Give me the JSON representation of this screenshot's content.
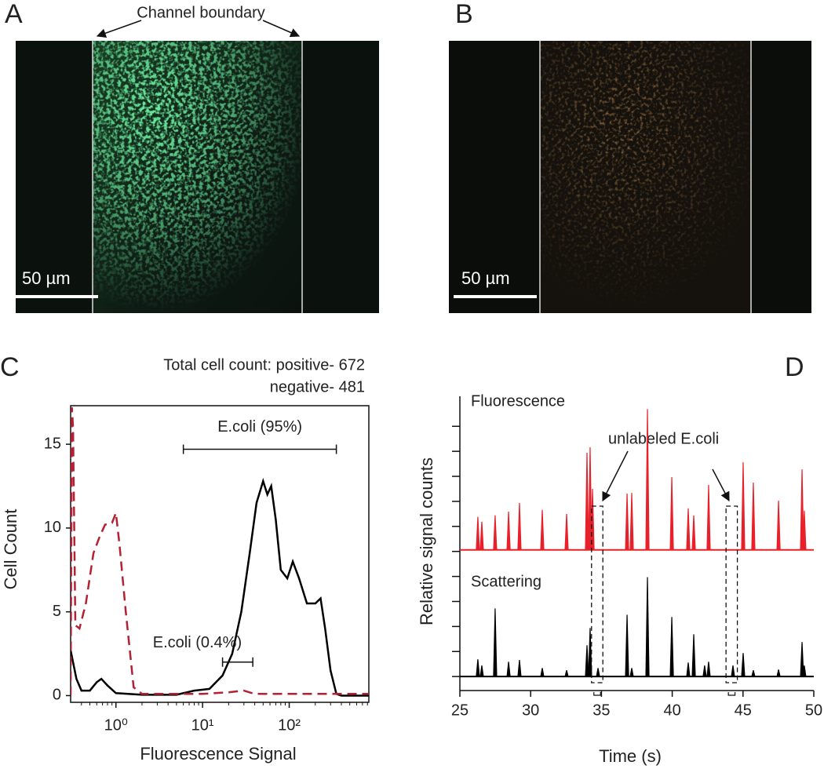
{
  "images": [
    {
      "label": "A",
      "annotation": "Channel boundary",
      "scale_bar": "50 µm"
    },
    {
      "label": "B",
      "scale_bar": "50 µm"
    }
  ],
  "chart_data": [
    {
      "type": "line",
      "label": "C",
      "x_scale": "log",
      "xlabel": "Fluorescence Signal",
      "ylabel": "Cell Count",
      "xlim": [
        0.3,
        830
      ],
      "ylim": [
        -0.4,
        17.3
      ],
      "xticks": [
        {
          "value": 1,
          "label": "10⁰"
        },
        {
          "value": 10,
          "label": "10¹"
        },
        {
          "value": 100,
          "label": "10²"
        }
      ],
      "yticks": [
        0,
        5,
        10,
        15
      ],
      "annotations": [
        "Total cell count: positive- 672",
        "negative- 481"
      ],
      "ranges": [
        {
          "label": "E.coli (95%)",
          "x": [
            6,
            350
          ],
          "y": 14.7
        },
        {
          "label": "E.coli (0.4%)",
          "x": [
            17,
            38
          ],
          "y": 2.0
        }
      ],
      "series": [
        {
          "color": "#000000",
          "dash": false,
          "x": [
            0.3,
            0.35,
            0.4,
            0.5,
            0.6,
            0.68,
            0.8,
            1.0,
            2,
            5,
            8,
            12,
            17,
            22,
            28,
            35,
            42,
            50,
            56,
            62,
            70,
            80,
            95,
            110,
            130,
            160,
            200,
            230,
            260,
            300,
            350,
            400,
            830
          ],
          "values": [
            2.7,
            1.0,
            0.3,
            0.3,
            0.8,
            1.0,
            0.6,
            0.15,
            0.05,
            0.05,
            0.3,
            0.4,
            1.2,
            2.5,
            5.0,
            8.5,
            11.5,
            12.8,
            12.0,
            12.5,
            10.5,
            7.5,
            7.0,
            8.0,
            7.0,
            5.5,
            5.5,
            5.8,
            4.0,
            1.5,
            0.1,
            0,
            0
          ]
        },
        {
          "color": "#b22234",
          "dash": true,
          "x": [
            0.3,
            0.31,
            0.32,
            0.34,
            0.38,
            0.45,
            0.55,
            0.65,
            0.75,
            0.9,
            1.0,
            1.1,
            1.3,
            1.6,
            2,
            10,
            20,
            30,
            40,
            830
          ],
          "values": [
            0,
            17.2,
            16,
            4.2,
            4.0,
            5.5,
            8.5,
            9.5,
            10.2,
            10.3,
            10.9,
            9.0,
            5.0,
            0.5,
            0.1,
            0.1,
            0.2,
            0.3,
            0.1,
            0.1
          ]
        }
      ]
    },
    {
      "type": "spike",
      "label": "D",
      "xlabel": "Time (s)",
      "ylabel": "Relative signal counts",
      "xlim": [
        25,
        50
      ],
      "ylim": [
        -0.56,
        11.2
      ],
      "xticks": [
        25,
        30,
        35,
        40,
        45,
        50
      ],
      "yticks": [
        0,
        1,
        2,
        3,
        4,
        5,
        6,
        7,
        8,
        9,
        10
      ],
      "ytick_labels": false,
      "annotations": [
        "unlabeled E.coli"
      ],
      "highlight_boxes": [
        {
          "x": [
            34.3,
            35.1
          ]
        },
        {
          "x": [
            43.8,
            44.6
          ]
        }
      ],
      "series": [
        {
          "name": "Fluorescence",
          "color": "#e8202a",
          "baseline": 5.06,
          "x": [
            26.27,
            26.55,
            27.49,
            28.44,
            29.21,
            30.82,
            32.54,
            33.98,
            34.2,
            34.37,
            36.81,
            37.14,
            38.25,
            39.97,
            41.13,
            41.52,
            42.57,
            45.01,
            45.73,
            47.51,
            49.17,
            49.33
          ],
          "values": [
            6.38,
            6.19,
            6.44,
            6.59,
            6.94,
            6.66,
            6.5,
            8.94,
            9.16,
            7.5,
            7.31,
            7.34,
            10.69,
            7.97,
            6.72,
            6.44,
            7.66,
            8.56,
            7.75,
            7.03,
            8.28,
            6.63
          ]
        },
        {
          "name": "Scattering",
          "color": "#000000",
          "baseline": 0,
          "x": [
            26.27,
            26.55,
            27.49,
            28.44,
            29.21,
            30.82,
            32.54,
            33.98,
            34.2,
            34.76,
            36.81,
            37.14,
            38.25,
            39.97,
            41.13,
            41.52,
            42.29,
            42.57,
            44.29,
            45.01,
            45.73,
            47.51,
            49.17,
            49.33
          ],
          "values": [
            0.69,
            0.44,
            2.72,
            0.59,
            0.66,
            0.34,
            0.25,
            1.25,
            1.94,
            0.34,
            2.47,
            0.34,
            3.97,
            2.38,
            0.56,
            1.69,
            0.44,
            0.59,
            0.44,
            0.94,
            0.25,
            0.28,
            1.38,
            0.44
          ]
        }
      ]
    }
  ]
}
